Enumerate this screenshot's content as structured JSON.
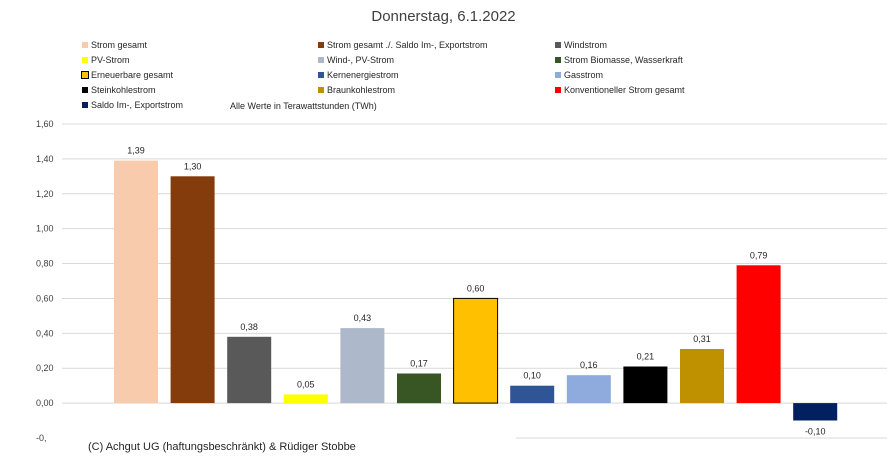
{
  "title": "Donnerstag, 6.1.2022",
  "unit_note": "Alle Werte in Terawattstunden (TWh)",
  "copyright": "(C) Achgut UG (haftungsbeschränkt) & Rüdiger Stobbe",
  "legend": [
    {
      "label": "Strom gesamt",
      "color": "#f8cbad"
    },
    {
      "label": "Strom gesamt ./. Saldo Im-, Exportstrom",
      "color": "#843c0c"
    },
    {
      "label": "Windstrom",
      "color": "#595959"
    },
    {
      "label": "PV-Strom",
      "color": "#ffff00"
    },
    {
      "label": "Wind-, PV-Strom",
      "color": "#adb9ca"
    },
    {
      "label": "Strom Biomasse, Wasserkraft",
      "color": "#375623"
    },
    {
      "label": "Erneuerbare gesamt",
      "color": "#ffc000",
      "outlined": true
    },
    {
      "label": "Kernenergiestrom",
      "color": "#2f5597"
    },
    {
      "label": "Gasstrom",
      "color": "#8faadc"
    },
    {
      "label": "Steinkohlestrom",
      "color": "#000000"
    },
    {
      "label": "Braunkohlestrom",
      "color": "#bf9000"
    },
    {
      "label": "Konventioneller Strom gesamt",
      "color": "#ff0000"
    },
    {
      "label": "Saldo Im-, Exportstrom",
      "color": "#002060"
    }
  ],
  "chart_data": {
    "type": "bar",
    "title": "Donnerstag, 6.1.2022",
    "ylim": [
      -0.2,
      1.6
    ],
    "yticks": [
      "1,60",
      "1,40",
      "1,20",
      "1,00",
      "0,80",
      "0,60",
      "0,40",
      "0,20",
      "0,00",
      "-0,"
    ],
    "grid": true,
    "legend_position": "top",
    "series": [
      {
        "name": "Strom gesamt",
        "value": 1.39,
        "label": "1,39",
        "color": "#f8cbad"
      },
      {
        "name": "Strom gesamt ./. Saldo Im-, Exportstrom",
        "value": 1.3,
        "label": "1,30",
        "color": "#843c0c"
      },
      {
        "name": "Windstrom",
        "value": 0.38,
        "label": "0,38",
        "color": "#595959"
      },
      {
        "name": "PV-Strom",
        "value": 0.05,
        "label": "0,05",
        "color": "#ffff00"
      },
      {
        "name": "Wind-, PV-Strom",
        "value": 0.43,
        "label": "0,43",
        "color": "#adb9ca"
      },
      {
        "name": "Strom Biomasse, Wasserkraft",
        "value": 0.17,
        "label": "0,17",
        "color": "#375623"
      },
      {
        "name": "Erneuerbare gesamt",
        "value": 0.6,
        "label": "0,60",
        "color": "#ffc000",
        "outlined": true
      },
      {
        "name": "Kernenergiestrom",
        "value": 0.1,
        "label": "0,10",
        "color": "#2f5597"
      },
      {
        "name": "Gasstrom",
        "value": 0.16,
        "label": "0,16",
        "color": "#8faadc"
      },
      {
        "name": "Steinkohlestrom",
        "value": 0.21,
        "label": "0,21",
        "color": "#000000"
      },
      {
        "name": "Braunkohlestrom",
        "value": 0.31,
        "label": "0,31",
        "color": "#bf9000"
      },
      {
        "name": "Konventioneller Strom gesamt",
        "value": 0.79,
        "label": "0,79",
        "color": "#ff0000"
      },
      {
        "name": "Saldo Im-, Exportstrom",
        "value": -0.1,
        "label": "-0,10",
        "color": "#002060"
      }
    ]
  }
}
